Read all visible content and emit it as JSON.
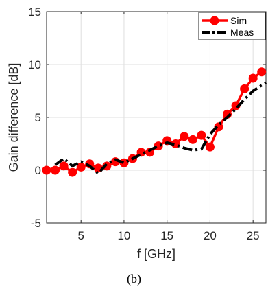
{
  "caption": "(b)",
  "chart_data": {
    "type": "line",
    "xlabel": "f [GHz]",
    "ylabel": "Gain difference [dB]",
    "xlim": [
      1,
      26.5
    ],
    "ylim": [
      -5,
      15
    ],
    "xticks": [
      5,
      10,
      15,
      20,
      25
    ],
    "yticks": [
      -5,
      0,
      5,
      10,
      15
    ],
    "grid": true,
    "legend_position": "top-right",
    "series": [
      {
        "name": "Sim",
        "color": "#ff0000",
        "style": "solid-with-circle-markers",
        "x": [
          1,
          2,
          3,
          4,
          5,
          6,
          7,
          8,
          9,
          10,
          11,
          12,
          13,
          14,
          15,
          16,
          17,
          18,
          19,
          20,
          21,
          22,
          23,
          24,
          25,
          26
        ],
        "y": [
          0.0,
          0.0,
          0.4,
          -0.2,
          0.3,
          0.6,
          0.2,
          0.4,
          0.8,
          0.7,
          1.1,
          1.7,
          1.7,
          2.3,
          2.8,
          2.5,
          3.2,
          2.9,
          3.3,
          2.2,
          4.1,
          5.3,
          6.1,
          7.7,
          8.7,
          9.3
        ]
      },
      {
        "name": "Meas",
        "color": "#000000",
        "style": "dash-dot",
        "x": [
          2,
          3,
          4,
          5,
          6,
          7,
          8,
          9,
          10,
          11,
          12,
          13,
          14,
          15,
          16,
          17,
          18,
          19,
          20,
          21,
          22,
          23,
          24,
          25,
          26.5
        ],
        "y": [
          0.5,
          1.1,
          0.4,
          0.8,
          0.4,
          -0.3,
          0.6,
          1.0,
          0.7,
          1.1,
          1.5,
          1.9,
          2.3,
          2.6,
          2.4,
          2.1,
          1.9,
          2.0,
          3.4,
          4.3,
          5.0,
          5.8,
          6.7,
          7.5,
          8.3
        ]
      }
    ]
  }
}
